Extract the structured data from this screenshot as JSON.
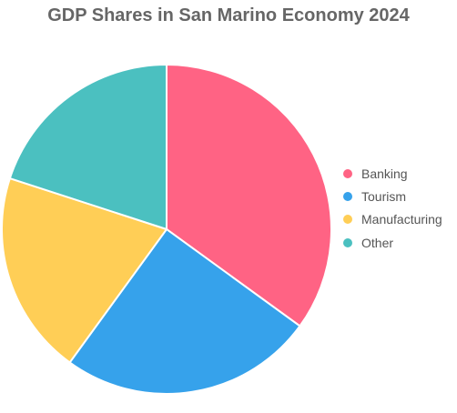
{
  "chart_data": {
    "type": "pie",
    "title": "GDP Shares in San Marino Economy 2024",
    "categories": [
      "Banking",
      "Tourism",
      "Manufacturing",
      "Other"
    ],
    "values": [
      35,
      25,
      20,
      20
    ],
    "colors": [
      "#ff6384",
      "#36a2eb",
      "#ffce56",
      "#4bc0c0"
    ],
    "legend_position": "right"
  }
}
